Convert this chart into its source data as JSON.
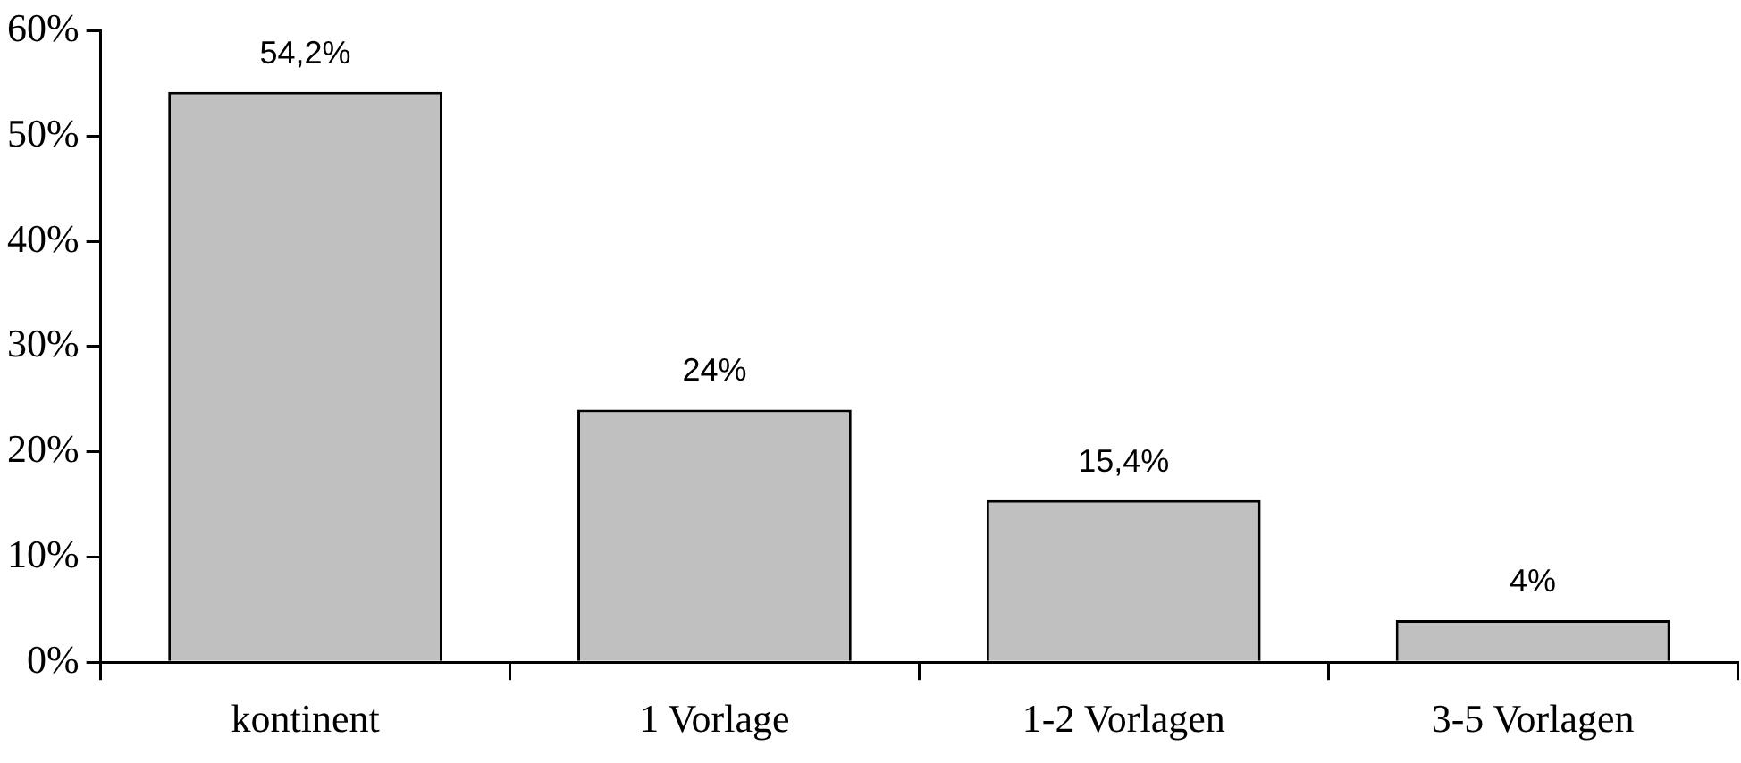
{
  "chart_data": {
    "type": "bar",
    "categories": [
      "kontinent",
      "1 Vorlage",
      "1-2 Vorlagen",
      "3-5 Vorlagen"
    ],
    "values": [
      54.2,
      24,
      15.4,
      4
    ],
    "value_labels": [
      "54,2%",
      "24%",
      "15,4%",
      "4%"
    ],
    "color": "#c0c0c0",
    "ylim": [
      0,
      60
    ],
    "yticks": [
      {
        "value": 0,
        "label": "0%"
      },
      {
        "value": 10,
        "label": "10%"
      },
      {
        "value": 20,
        "label": "20%"
      },
      {
        "value": 30,
        "label": "30%"
      },
      {
        "value": 40,
        "label": "40%"
      },
      {
        "value": 50,
        "label": "50%"
      },
      {
        "value": 60,
        "label": "60%"
      }
    ]
  }
}
